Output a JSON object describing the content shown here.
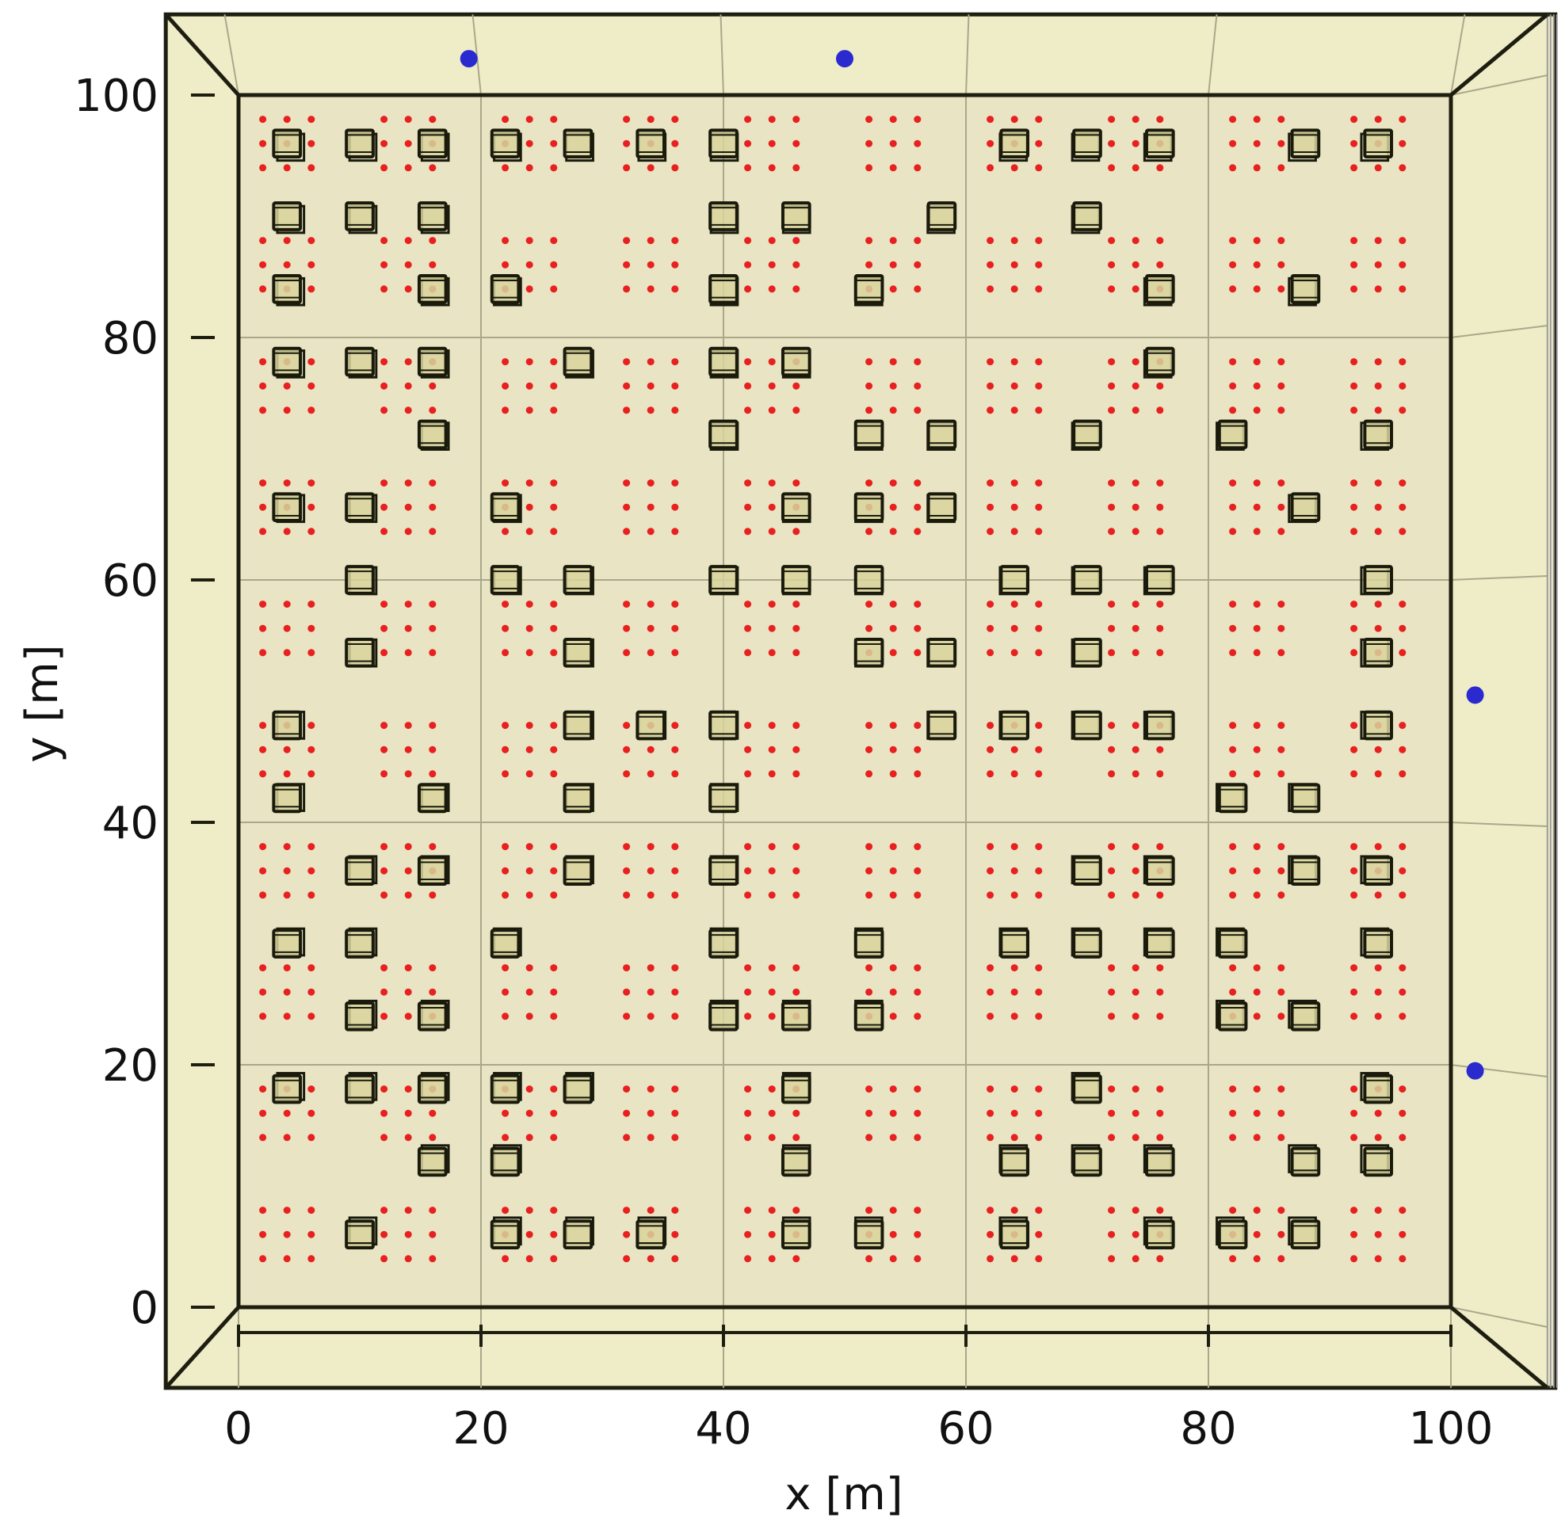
{
  "chart_data": {
    "type": "scatter",
    "title": "",
    "xlabel": "x [m]",
    "ylabel": "y [m]",
    "xlim": [
      -6,
      106
    ],
    "ylim": [
      -6,
      106
    ],
    "xticks": [
      0,
      20,
      40,
      60,
      80,
      100
    ],
    "yticks": [
      0,
      20,
      40,
      60,
      80,
      100
    ],
    "x_tick_labels": [
      "0",
      "20",
      "40",
      "60",
      "80",
      "100"
    ],
    "y_tick_labels": [
      "0",
      "20",
      "40",
      "60",
      "80",
      "100"
    ],
    "grid": true,
    "view": "3d-top-down",
    "colors": {
      "floor": "#e8e4c4",
      "border_band": "#efecc8",
      "grid_line": "#a9a88a",
      "frame": "#1e1e10",
      "box_fill": "#d8d39c",
      "box_edge": "#1a1a0c",
      "receiver": "#e8201f",
      "transmitter": "#2a2acf"
    },
    "receiver_grid": {
      "column_centers": [
        4,
        14,
        24,
        34,
        44,
        54,
        64,
        74,
        84,
        94
      ],
      "row_centers": [
        96,
        86,
        76,
        66,
        56,
        46,
        36,
        26,
        16,
        6
      ],
      "offsets": [
        -2,
        0,
        2
      ]
    },
    "grid_cells": {
      "cols": [
        4,
        10,
        16,
        22,
        28,
        34,
        40,
        46,
        52,
        58,
        64,
        70,
        76,
        82,
        88,
        94
      ],
      "rows": [
        96,
        90,
        84,
        78,
        72,
        66,
        60,
        54,
        48,
        42,
        36,
        30,
        24,
        18,
        12,
        6
      ]
    },
    "buildings": {
      "description": "Building positions as (column index, row index) into grid_cells",
      "cells": [
        [
          0,
          0
        ],
        [
          1,
          0
        ],
        [
          2,
          0
        ],
        [
          3,
          0
        ],
        [
          4,
          0
        ],
        [
          5,
          0
        ],
        [
          6,
          0
        ],
        [
          10,
          0
        ],
        [
          11,
          0
        ],
        [
          12,
          0
        ],
        [
          14,
          0
        ],
        [
          15,
          0
        ],
        [
          0,
          1
        ],
        [
          1,
          1
        ],
        [
          2,
          1
        ],
        [
          6,
          1
        ],
        [
          7,
          1
        ],
        [
          9,
          1
        ],
        [
          11,
          1
        ],
        [
          0,
          2
        ],
        [
          2,
          2
        ],
        [
          3,
          2
        ],
        [
          6,
          2
        ],
        [
          8,
          2
        ],
        [
          12,
          2
        ],
        [
          14,
          2
        ],
        [
          0,
          3
        ],
        [
          1,
          3
        ],
        [
          2,
          3
        ],
        [
          4,
          3
        ],
        [
          6,
          3
        ],
        [
          7,
          3
        ],
        [
          12,
          3
        ],
        [
          2,
          4
        ],
        [
          6,
          4
        ],
        [
          8,
          4
        ],
        [
          9,
          4
        ],
        [
          11,
          4
        ],
        [
          13,
          4
        ],
        [
          15,
          4
        ],
        [
          0,
          5
        ],
        [
          1,
          5
        ],
        [
          3,
          5
        ],
        [
          7,
          5
        ],
        [
          8,
          5
        ],
        [
          9,
          5
        ],
        [
          14,
          5
        ],
        [
          1,
          6
        ],
        [
          3,
          6
        ],
        [
          4,
          6
        ],
        [
          6,
          6
        ],
        [
          7,
          6
        ],
        [
          8,
          6
        ],
        [
          10,
          6
        ],
        [
          11,
          6
        ],
        [
          12,
          6
        ],
        [
          15,
          6
        ],
        [
          1,
          7
        ],
        [
          4,
          7
        ],
        [
          8,
          7
        ],
        [
          9,
          7
        ],
        [
          11,
          7
        ],
        [
          15,
          7
        ],
        [
          0,
          8
        ],
        [
          4,
          8
        ],
        [
          5,
          8
        ],
        [
          6,
          8
        ],
        [
          9,
          8
        ],
        [
          10,
          8
        ],
        [
          11,
          8
        ],
        [
          12,
          8
        ],
        [
          15,
          8
        ],
        [
          0,
          9
        ],
        [
          2,
          9
        ],
        [
          4,
          9
        ],
        [
          6,
          9
        ],
        [
          13,
          9
        ],
        [
          14,
          9
        ],
        [
          1,
          10
        ],
        [
          2,
          10
        ],
        [
          4,
          10
        ],
        [
          6,
          10
        ],
        [
          11,
          10
        ],
        [
          12,
          10
        ],
        [
          14,
          10
        ],
        [
          15,
          10
        ],
        [
          0,
          11
        ],
        [
          1,
          11
        ],
        [
          3,
          11
        ],
        [
          6,
          11
        ],
        [
          8,
          11
        ],
        [
          10,
          11
        ],
        [
          11,
          11
        ],
        [
          12,
          11
        ],
        [
          13,
          11
        ],
        [
          15,
          11
        ],
        [
          1,
          12
        ],
        [
          2,
          12
        ],
        [
          6,
          12
        ],
        [
          7,
          12
        ],
        [
          8,
          12
        ],
        [
          13,
          12
        ],
        [
          14,
          12
        ],
        [
          0,
          13
        ],
        [
          1,
          13
        ],
        [
          2,
          13
        ],
        [
          3,
          13
        ],
        [
          4,
          13
        ],
        [
          7,
          13
        ],
        [
          11,
          13
        ],
        [
          15,
          13
        ],
        [
          2,
          14
        ],
        [
          3,
          14
        ],
        [
          7,
          14
        ],
        [
          10,
          14
        ],
        [
          11,
          14
        ],
        [
          12,
          14
        ],
        [
          14,
          14
        ],
        [
          15,
          14
        ],
        [
          1,
          15
        ],
        [
          3,
          15
        ],
        [
          4,
          15
        ],
        [
          5,
          15
        ],
        [
          7,
          15
        ],
        [
          8,
          15
        ],
        [
          10,
          15
        ],
        [
          12,
          15
        ],
        [
          13,
          15
        ],
        [
          14,
          15
        ]
      ]
    },
    "transmitters": {
      "x": [
        19,
        50,
        102,
        102
      ],
      "y": [
        103,
        103,
        50.5,
        19.5
      ]
    }
  }
}
